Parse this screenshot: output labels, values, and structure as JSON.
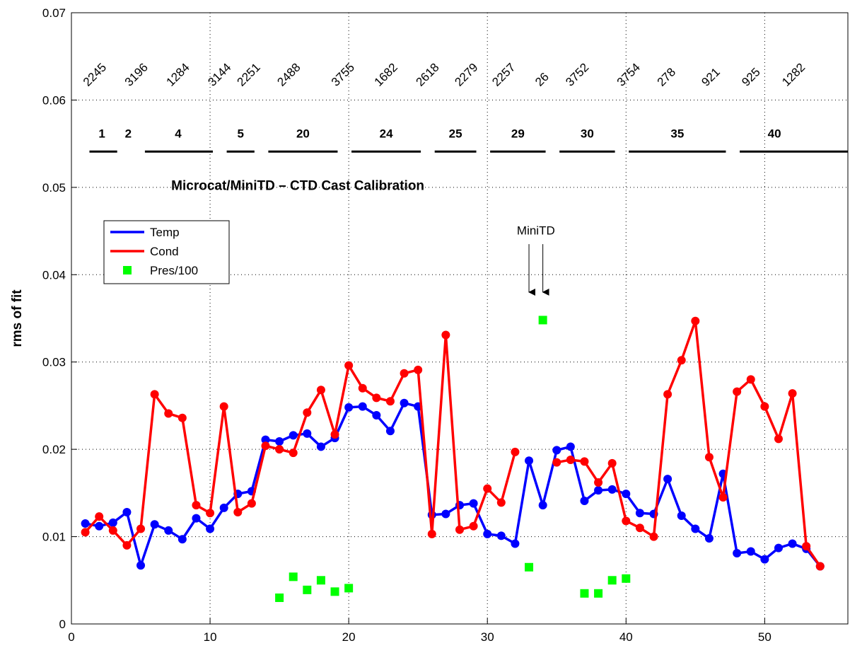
{
  "chart_data": {
    "type": "line",
    "title": "Microcat/MiniTD – CTD Cast Calibration",
    "y_label": "rms of fit",
    "xlim": [
      0,
      56
    ],
    "ylim": [
      0,
      0.07
    ],
    "xticks": [
      0,
      10,
      20,
      30,
      40,
      50
    ],
    "yticks": [
      0,
      0.01,
      0.02,
      0.03,
      0.04,
      0.05,
      0.06,
      0.07
    ],
    "grid": true,
    "legend": "upper left",
    "series": [
      {
        "name": "Temp",
        "color": "#0000ff",
        "mode": "line",
        "x": [
          1,
          2,
          3,
          4,
          5,
          6,
          7,
          8,
          9,
          10,
          11,
          12,
          13,
          14,
          15,
          16,
          17,
          18,
          19,
          20,
          21,
          22,
          23,
          24,
          25,
          26,
          27,
          28,
          29,
          30,
          31,
          32,
          33,
          34,
          35,
          36,
          37,
          38,
          39,
          40,
          41,
          42,
          43,
          44,
          45,
          46,
          47,
          48,
          49,
          50,
          51,
          52,
          53,
          54
        ],
        "values": [
          0.0115,
          0.0112,
          0.0116,
          0.0128,
          0.0067,
          0.0114,
          0.0107,
          0.0097,
          0.0121,
          0.0109,
          0.0133,
          0.0149,
          0.0152,
          0.0211,
          0.0209,
          0.0216,
          0.0218,
          0.0203,
          0.0213,
          0.0248,
          0.0249,
          0.0239,
          0.0221,
          0.0253,
          0.0249,
          0.0125,
          0.0126,
          0.0136,
          0.0138,
          0.0103,
          0.0101,
          0.0092,
          0.0187,
          0.0136,
          0.0199,
          0.0203,
          0.0141,
          0.0153,
          0.0154,
          0.0149,
          0.0127,
          0.0126,
          0.0166,
          0.0124,
          0.0109,
          0.0098,
          0.0172,
          0.0081,
          0.0083,
          0.0074,
          0.0087,
          0.0092,
          0.0086,
          0.0066
        ]
      },
      {
        "name": "Cond",
        "color": "#ff0000",
        "mode": "line",
        "x": [
          1,
          2,
          3,
          4,
          5,
          6,
          7,
          8,
          9,
          10,
          11,
          12,
          13,
          14,
          15,
          16,
          17,
          18,
          19,
          20,
          21,
          22,
          23,
          24,
          25,
          26,
          27,
          28,
          29,
          30,
          31,
          32,
          33,
          34,
          35,
          36,
          37,
          38,
          39,
          40,
          41,
          42,
          43,
          44,
          45,
          46,
          47,
          48,
          49,
          50,
          51,
          52,
          53,
          54
        ],
        "values": [
          0.0105,
          0.0123,
          0.0107,
          0.009,
          0.0109,
          0.0263,
          0.0241,
          0.0236,
          0.0136,
          0.0127,
          0.0249,
          0.0128,
          0.0138,
          0.0204,
          0.02,
          0.0196,
          0.0242,
          0.0268,
          0.0217,
          0.0296,
          0.027,
          0.0259,
          0.0255,
          0.0287,
          0.0291,
          0.0103,
          0.0331,
          0.0108,
          0.0112,
          0.0155,
          0.0139,
          0.0197,
          null,
          null,
          0.0185,
          0.0188,
          0.0186,
          0.0162,
          0.0184,
          0.0118,
          0.011,
          0.01,
          0.0263,
          0.0302,
          0.0347,
          0.0191,
          0.0145,
          0.0266,
          0.028,
          0.0249,
          0.0212,
          0.0264,
          0.0089,
          0.0066
        ]
      },
      {
        "name": "Pres/100",
        "color": "#00ff00",
        "mode": "marker",
        "x": [
          15,
          16,
          17,
          18,
          19,
          20,
          33,
          34,
          37,
          38,
          39,
          40
        ],
        "values": [
          0.003,
          0.0054,
          0.0039,
          0.005,
          0.0037,
          0.0041,
          0.0065,
          0.0348,
          0.0035,
          0.0035,
          0.005,
          0.0052
        ]
      }
    ],
    "serials": [
      {
        "text": "2245",
        "x": 1.2
      },
      {
        "text": "3196",
        "x": 4.2
      },
      {
        "text": "1284",
        "x": 7.2
      },
      {
        "text": "3144",
        "x": 10.2
      },
      {
        "text": "2251",
        "x": 12.3
      },
      {
        "text": "2488",
        "x": 15.2
      },
      {
        "text": "3755",
        "x": 19.1
      },
      {
        "text": "1682",
        "x": 22.2
      },
      {
        "text": "2618",
        "x": 25.2
      },
      {
        "text": "2279",
        "x": 28
      },
      {
        "text": "2257",
        "x": 30.7
      },
      {
        "text": "26",
        "x": 33.8
      },
      {
        "text": "3752",
        "x": 36
      },
      {
        "text": "3754",
        "x": 39.7
      },
      {
        "text": "278",
        "x": 42.6
      },
      {
        "text": "921",
        "x": 45.8
      },
      {
        "text": "925",
        "x": 48.7
      },
      {
        "text": "1282",
        "x": 51.6
      }
    ],
    "groups": [
      {
        "label": "1",
        "x": 2.2,
        "start": 1.3,
        "end": 3.3
      },
      {
        "label": "2",
        "x": 4.1
      },
      {
        "label": "4",
        "x": 7.7,
        "start": 5.3,
        "end": 10.2
      },
      {
        "label": "5",
        "x": 12.2,
        "start": 11.2,
        "end": 13.2
      },
      {
        "label": "20",
        "x": 16.7,
        "start": 14.2,
        "end": 19.2
      },
      {
        "label": "24",
        "x": 22.7,
        "start": 20.2,
        "end": 25.2
      },
      {
        "label": "25",
        "x": 27.7,
        "start": 26.2,
        "end": 29.2
      },
      {
        "label": "29",
        "x": 32.2,
        "start": 30.2,
        "end": 34.2
      },
      {
        "label": "30",
        "x": 37.2,
        "start": 35.2,
        "end": 39.2
      },
      {
        "label": "35",
        "x": 43.7,
        "start": 40.2,
        "end": 47.2
      },
      {
        "label": "40",
        "x": 50.7,
        "start": 48.2,
        "end": 56
      }
    ],
    "annotation": {
      "text": "MiniTD",
      "arrows_x": [
        33,
        34
      ]
    }
  }
}
